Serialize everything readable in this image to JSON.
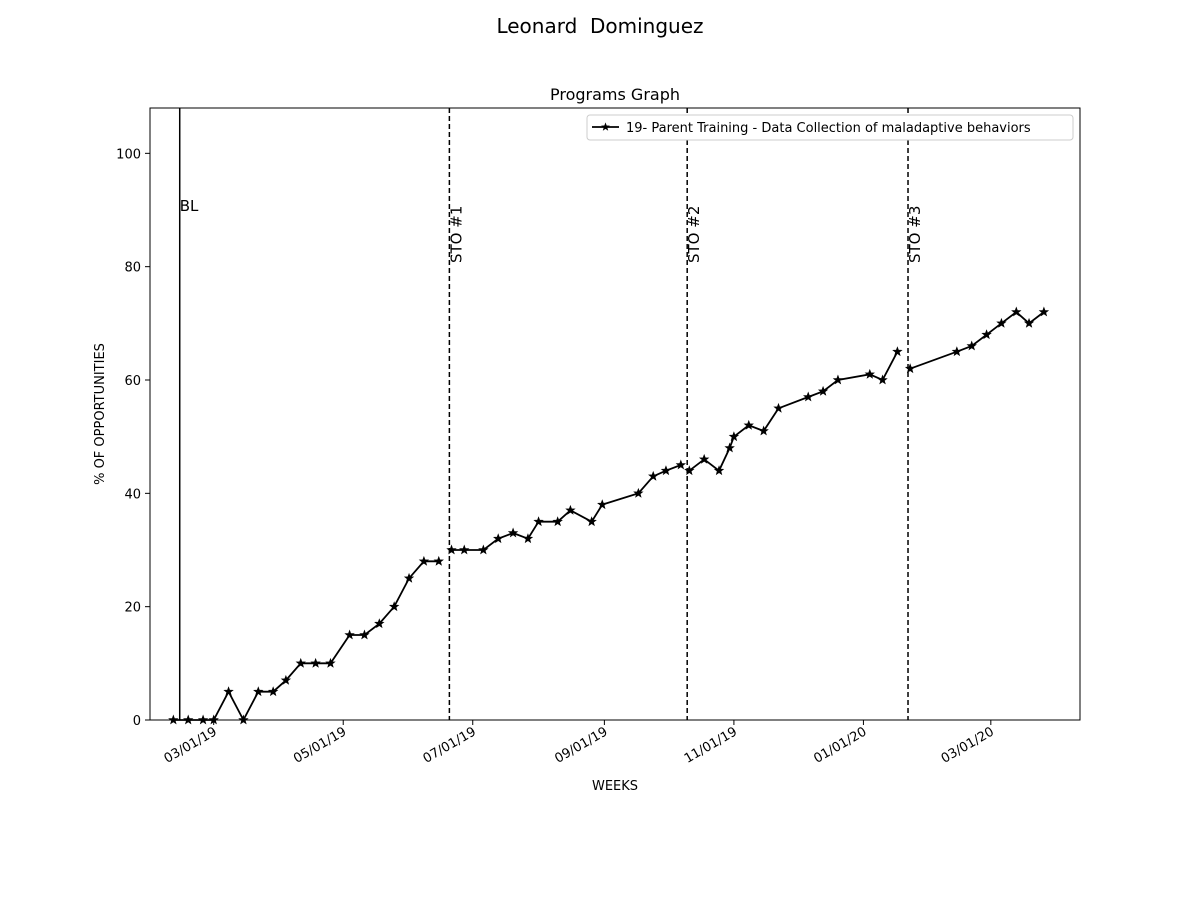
{
  "chart_data": {
    "type": "line",
    "suptitle": "Leonard  Dominguez",
    "title": "Programs Graph",
    "xlabel": "WEEKS",
    "ylabel": "% OF OPPORTUNITIES",
    "ylim": [
      0,
      108
    ],
    "yticks": [
      0,
      20,
      40,
      60,
      80,
      100
    ],
    "xlim": [
      "2019-01-30",
      "2020-04-12"
    ],
    "xticks": [
      {
        "date": "2019-03-01",
        "label": "03/01/19"
      },
      {
        "date": "2019-05-01",
        "label": "05/01/19"
      },
      {
        "date": "2019-07-01",
        "label": "07/01/19"
      },
      {
        "date": "2019-09-01",
        "label": "09/01/19"
      },
      {
        "date": "2019-11-01",
        "label": "11/01/19"
      },
      {
        "date": "2020-01-01",
        "label": "01/01/20"
      },
      {
        "date": "2020-03-01",
        "label": "03/01/20"
      }
    ],
    "grid": false,
    "legend_position": "top-right",
    "phase_lines": [
      {
        "date": "2019-02-13",
        "label": "BL",
        "style": "solid"
      },
      {
        "date": "2019-06-20",
        "label": "STO #1",
        "style": "dashed"
      },
      {
        "date": "2019-10-10",
        "label": "STO #2",
        "style": "dashed"
      },
      {
        "date": "2020-01-22",
        "label": "STO #3",
        "style": "dashed"
      }
    ],
    "series": [
      {
        "name": "19- Parent Training - Data Collection of maladaptive behaviors",
        "color": "#000000",
        "marker": "star",
        "segments": [
          [
            {
              "x": "2019-02-10",
              "y": 0
            },
            {
              "x": "2019-02-17",
              "y": 0
            },
            {
              "x": "2019-02-24",
              "y": 0
            },
            {
              "x": "2019-03-01",
              "y": 0
            },
            {
              "x": "2019-03-08",
              "y": 5
            },
            {
              "x": "2019-03-15",
              "y": 0
            },
            {
              "x": "2019-03-22",
              "y": 5
            },
            {
              "x": "2019-03-29",
              "y": 5
            },
            {
              "x": "2019-04-04",
              "y": 7
            },
            {
              "x": "2019-04-11",
              "y": 10
            },
            {
              "x": "2019-04-18",
              "y": 10
            },
            {
              "x": "2019-04-25",
              "y": 10
            },
            {
              "x": "2019-05-04",
              "y": 15
            },
            {
              "x": "2019-05-11",
              "y": 15
            },
            {
              "x": "2019-05-18",
              "y": 17
            },
            {
              "x": "2019-05-25",
              "y": 20
            },
            {
              "x": "2019-06-01",
              "y": 25
            },
            {
              "x": "2019-06-08",
              "y": 28
            },
            {
              "x": "2019-06-15",
              "y": 28
            }
          ],
          [
            {
              "x": "2019-06-21",
              "y": 30
            },
            {
              "x": "2019-06-27",
              "y": 30
            },
            {
              "x": "2019-07-06",
              "y": 30
            },
            {
              "x": "2019-07-13",
              "y": 32
            },
            {
              "x": "2019-07-20",
              "y": 33
            },
            {
              "x": "2019-07-27",
              "y": 32
            },
            {
              "x": "2019-08-01",
              "y": 35
            },
            {
              "x": "2019-08-10",
              "y": 35
            },
            {
              "x": "2019-08-16",
              "y": 37
            },
            {
              "x": "2019-08-26",
              "y": 35
            },
            {
              "x": "2019-08-31",
              "y": 38
            },
            {
              "x": "2019-09-17",
              "y": 40
            },
            {
              "x": "2019-09-24",
              "y": 43
            },
            {
              "x": "2019-09-30",
              "y": 44
            },
            {
              "x": "2019-10-07",
              "y": 45
            }
          ],
          [
            {
              "x": "2019-10-11",
              "y": 44
            },
            {
              "x": "2019-10-18",
              "y": 46
            },
            {
              "x": "2019-10-25",
              "y": 44
            },
            {
              "x": "2019-10-30",
              "y": 48
            },
            {
              "x": "2019-11-01",
              "y": 50
            },
            {
              "x": "2019-11-08",
              "y": 52
            },
            {
              "x": "2019-11-15",
              "y": 51
            },
            {
              "x": "2019-11-22",
              "y": 55
            },
            {
              "x": "2019-12-06",
              "y": 57
            },
            {
              "x": "2019-12-13",
              "y": 58
            },
            {
              "x": "2019-12-20",
              "y": 60
            },
            {
              "x": "2020-01-04",
              "y": 61
            },
            {
              "x": "2020-01-10",
              "y": 60
            },
            {
              "x": "2020-01-17",
              "y": 65
            }
          ],
          [
            {
              "x": "2020-01-23",
              "y": 62
            },
            {
              "x": "2020-02-14",
              "y": 65
            },
            {
              "x": "2020-02-21",
              "y": 66
            },
            {
              "x": "2020-02-28",
              "y": 68
            },
            {
              "x": "2020-03-06",
              "y": 70
            },
            {
              "x": "2020-03-13",
              "y": 72
            },
            {
              "x": "2020-03-19",
              "y": 70
            },
            {
              "x": "2020-03-26",
              "y": 72
            }
          ]
        ]
      }
    ]
  }
}
